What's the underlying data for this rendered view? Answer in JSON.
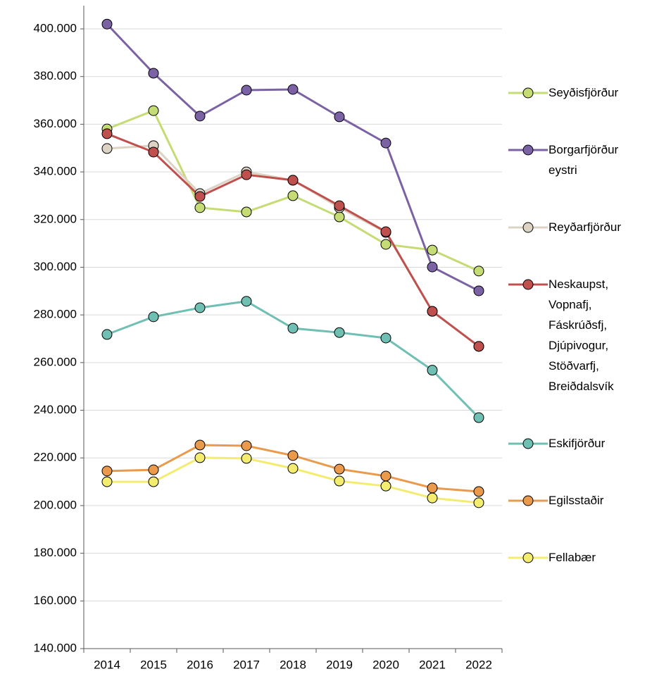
{
  "chart_data": {
    "type": "line",
    "categories": [
      "2014",
      "2015",
      "2016",
      "2017",
      "2018",
      "2019",
      "2020",
      "2021",
      "2022"
    ],
    "series": [
      {
        "name": "Seyðisfjörður",
        "color": "#c5dc74",
        "values": [
          358000,
          365700,
          325000,
          323200,
          330000,
          321100,
          309600,
          307200,
          298400
        ]
      },
      {
        "name": "Borgarfjörður eystri",
        "color": "#7b62a5",
        "values": [
          402000,
          381400,
          363400,
          374300,
          374600,
          363100,
          352100,
          300100,
          290100
        ]
      },
      {
        "name": "Reyðarfjörður",
        "color": "#ddd3c4",
        "values": [
          349800,
          351000,
          330900,
          340000,
          336500,
          325000,
          314600,
          281500,
          266800
        ]
      },
      {
        "name": "Neskaupst, Vopnafj, Fáskrúðsfj, Djúpivogur, Stöðvarfj, Breiðdalsvík",
        "color": "#c0504d",
        "values": [
          356000,
          348300,
          329700,
          338800,
          336500,
          325800,
          314900,
          281500,
          266800
        ]
      },
      {
        "name": "Eskifjörður",
        "color": "#6fbfb3",
        "values": [
          271800,
          279200,
          283000,
          285700,
          274400,
          272600,
          270300,
          256800,
          236900
        ]
      },
      {
        "name": "Egilsstaðir",
        "color": "#eb9a4b",
        "values": [
          214500,
          215000,
          225400,
          225100,
          221000,
          215300,
          212400,
          207400,
          205900
        ]
      },
      {
        "name": "Fellabær",
        "color": "#f3ec6e",
        "values": [
          210000,
          210000,
          220100,
          219800,
          215600,
          210300,
          208200,
          203200,
          201200
        ]
      }
    ],
    "ylim": [
      140000,
      400000
    ],
    "yticks": [
      {
        "value": 140000,
        "label": "140.000"
      },
      {
        "value": 160000,
        "label": "160.000"
      },
      {
        "value": 180000,
        "label": "180.000"
      },
      {
        "value": 200000,
        "label": "200.000"
      },
      {
        "value": 220000,
        "label": "220.000"
      },
      {
        "value": 240000,
        "label": "240.000"
      },
      {
        "value": 260000,
        "label": "260.000"
      },
      {
        "value": 280000,
        "label": "280.000"
      },
      {
        "value": 300000,
        "label": "300.000"
      },
      {
        "value": 320000,
        "label": "320.000"
      },
      {
        "value": 340000,
        "label": "340.000"
      },
      {
        "value": 360000,
        "label": "360.000"
      },
      {
        "value": 380000,
        "label": "380.000"
      },
      {
        "value": 400000,
        "label": "400.000"
      }
    ],
    "grid": true,
    "legend": "right"
  }
}
